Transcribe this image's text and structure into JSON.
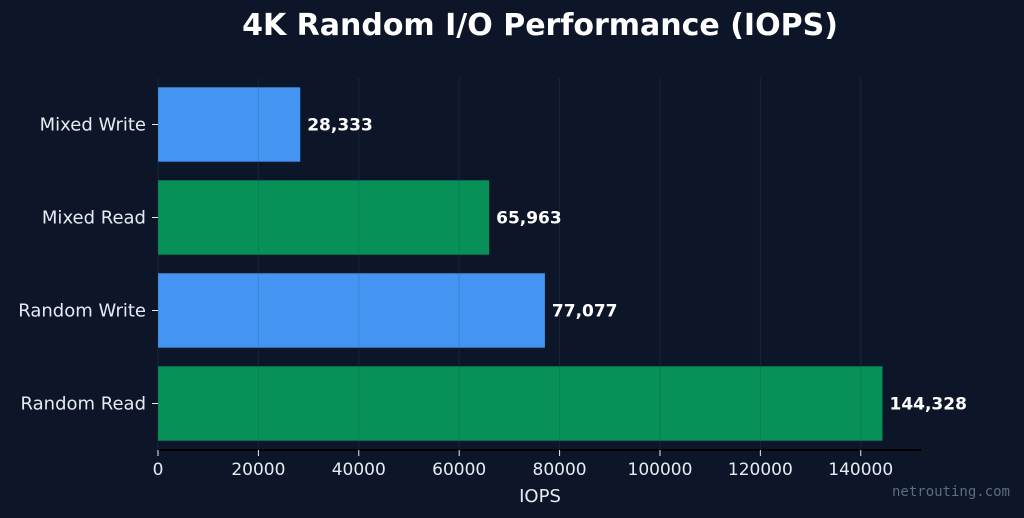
{
  "chart_data": {
    "type": "bar",
    "orientation": "horizontal",
    "title": "4K Random I/O Performance (IOPS)",
    "xlabel": "IOPS",
    "ylabel": "",
    "categories": [
      "Random Read",
      "Random Write",
      "Mixed Read",
      "Mixed Write"
    ],
    "values": [
      144328,
      77077,
      65963,
      28333
    ],
    "value_labels": [
      "144,328",
      "77,077",
      "65,963",
      "28,333"
    ],
    "bar_colors": [
      "#079159",
      "#4395f1",
      "#079159",
      "#4395f1"
    ],
    "xlim": [
      0,
      152000
    ],
    "xticks": [
      0,
      20000,
      40000,
      60000,
      80000,
      100000,
      120000,
      140000
    ],
    "xtick_labels": [
      "0",
      "20000",
      "40000",
      "60000",
      "80000",
      "100000",
      "120000",
      "140000"
    ],
    "grid": "vertical, drawn behind bars",
    "legend": "none"
  },
  "watermark": "netrouting.com",
  "colors": {
    "background": "#0d1629",
    "text": "#e6ebf2",
    "grid": "#1e2a3e",
    "axis": "#000000"
  }
}
